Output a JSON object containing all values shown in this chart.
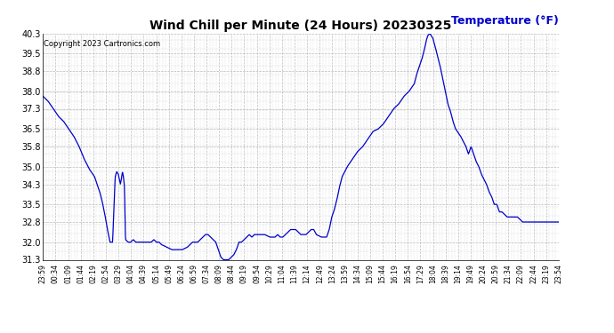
{
  "title": "Wind Chill per Minute (24 Hours) 20230325",
  "ylabel": "Temperature (°F)",
  "copyright_text": "Copyright 2023 Cartronics.com",
  "line_color": "#0000cc",
  "bg_color": "#ffffff",
  "grid_color": "#aaaaaa",
  "ylim": [
    31.3,
    40.3
  ],
  "yticks": [
    31.3,
    32.0,
    32.8,
    33.5,
    34.3,
    35.0,
    35.8,
    36.5,
    37.3,
    38.0,
    38.8,
    39.5,
    40.3
  ],
  "xtick_labels": [
    "23:59",
    "00:34",
    "01:09",
    "01:44",
    "02:19",
    "02:54",
    "03:29",
    "04:04",
    "04:39",
    "05:14",
    "05:49",
    "06:24",
    "06:59",
    "07:34",
    "08:09",
    "08:44",
    "09:19",
    "09:54",
    "10:29",
    "11:04",
    "11:39",
    "12:14",
    "12:49",
    "13:24",
    "13:59",
    "14:34",
    "15:09",
    "15:44",
    "16:19",
    "16:54",
    "17:29",
    "18:04",
    "18:39",
    "19:14",
    "19:49",
    "20:24",
    "20:59",
    "21:34",
    "22:09",
    "22:44",
    "23:19",
    "23:54"
  ],
  "data_points": [
    [
      0.0,
      37.8
    ],
    [
      0.01,
      37.6
    ],
    [
      0.02,
      37.3
    ],
    [
      0.03,
      37.0
    ],
    [
      0.04,
      36.8
    ],
    [
      0.05,
      36.5
    ],
    [
      0.06,
      36.2
    ],
    [
      0.07,
      35.8
    ],
    [
      0.08,
      35.3
    ],
    [
      0.09,
      34.9
    ],
    [
      0.1,
      34.6
    ],
    [
      0.105,
      34.3
    ],
    [
      0.11,
      34.0
    ],
    [
      0.115,
      33.6
    ],
    [
      0.12,
      33.1
    ],
    [
      0.125,
      32.5
    ],
    [
      0.13,
      32.0
    ],
    [
      0.135,
      32.0
    ],
    [
      0.14,
      34.6
    ],
    [
      0.143,
      34.8
    ],
    [
      0.146,
      34.7
    ],
    [
      0.148,
      34.5
    ],
    [
      0.15,
      34.3
    ],
    [
      0.152,
      34.5
    ],
    [
      0.154,
      34.8
    ],
    [
      0.156,
      34.6
    ],
    [
      0.158,
      34.2
    ],
    [
      0.16,
      32.1
    ],
    [
      0.165,
      32.0
    ],
    [
      0.17,
      32.0
    ],
    [
      0.175,
      32.1
    ],
    [
      0.18,
      32.0
    ],
    [
      0.185,
      32.0
    ],
    [
      0.19,
      32.0
    ],
    [
      0.195,
      32.0
    ],
    [
      0.2,
      32.0
    ],
    [
      0.21,
      32.0
    ],
    [
      0.215,
      32.1
    ],
    [
      0.22,
      32.0
    ],
    [
      0.225,
      32.0
    ],
    [
      0.23,
      31.9
    ],
    [
      0.24,
      31.8
    ],
    [
      0.25,
      31.7
    ],
    [
      0.26,
      31.7
    ],
    [
      0.27,
      31.7
    ],
    [
      0.28,
      31.8
    ],
    [
      0.29,
      32.0
    ],
    [
      0.295,
      32.0
    ],
    [
      0.3,
      32.0
    ],
    [
      0.305,
      32.1
    ],
    [
      0.31,
      32.2
    ],
    [
      0.315,
      32.3
    ],
    [
      0.32,
      32.3
    ],
    [
      0.325,
      32.2
    ],
    [
      0.33,
      32.1
    ],
    [
      0.335,
      32.0
    ],
    [
      0.34,
      31.7
    ],
    [
      0.345,
      31.4
    ],
    [
      0.35,
      31.3
    ],
    [
      0.355,
      31.3
    ],
    [
      0.36,
      31.3
    ],
    [
      0.365,
      31.4
    ],
    [
      0.37,
      31.5
    ],
    [
      0.375,
      31.7
    ],
    [
      0.38,
      32.0
    ],
    [
      0.385,
      32.0
    ],
    [
      0.39,
      32.1
    ],
    [
      0.395,
      32.2
    ],
    [
      0.4,
      32.3
    ],
    [
      0.405,
      32.2
    ],
    [
      0.41,
      32.3
    ],
    [
      0.42,
      32.3
    ],
    [
      0.43,
      32.3
    ],
    [
      0.44,
      32.2
    ],
    [
      0.45,
      32.2
    ],
    [
      0.455,
      32.3
    ],
    [
      0.46,
      32.2
    ],
    [
      0.465,
      32.2
    ],
    [
      0.47,
      32.3
    ],
    [
      0.475,
      32.4
    ],
    [
      0.48,
      32.5
    ],
    [
      0.485,
      32.5
    ],
    [
      0.49,
      32.5
    ],
    [
      0.495,
      32.4
    ],
    [
      0.5,
      32.3
    ],
    [
      0.505,
      32.3
    ],
    [
      0.51,
      32.3
    ],
    [
      0.515,
      32.4
    ],
    [
      0.52,
      32.5
    ],
    [
      0.525,
      32.5
    ],
    [
      0.53,
      32.3
    ],
    [
      0.54,
      32.2
    ],
    [
      0.55,
      32.2
    ],
    [
      0.555,
      32.5
    ],
    [
      0.56,
      33.0
    ],
    [
      0.565,
      33.3
    ],
    [
      0.57,
      33.7
    ],
    [
      0.575,
      34.2
    ],
    [
      0.58,
      34.6
    ],
    [
      0.59,
      35.0
    ],
    [
      0.6,
      35.3
    ],
    [
      0.61,
      35.6
    ],
    [
      0.62,
      35.8
    ],
    [
      0.63,
      36.1
    ],
    [
      0.64,
      36.4
    ],
    [
      0.65,
      36.5
    ],
    [
      0.66,
      36.7
    ],
    [
      0.67,
      37.0
    ],
    [
      0.68,
      37.3
    ],
    [
      0.69,
      37.5
    ],
    [
      0.7,
      37.8
    ],
    [
      0.71,
      38.0
    ],
    [
      0.72,
      38.3
    ],
    [
      0.725,
      38.7
    ],
    [
      0.73,
      39.0
    ],
    [
      0.735,
      39.3
    ],
    [
      0.74,
      39.7
    ],
    [
      0.743,
      40.0
    ],
    [
      0.746,
      40.2
    ],
    [
      0.75,
      40.3
    ],
    [
      0.753,
      40.2
    ],
    [
      0.756,
      40.1
    ],
    [
      0.76,
      39.8
    ],
    [
      0.765,
      39.4
    ],
    [
      0.77,
      39.0
    ],
    [
      0.775,
      38.5
    ],
    [
      0.78,
      38.0
    ],
    [
      0.785,
      37.5
    ],
    [
      0.79,
      37.2
    ],
    [
      0.795,
      36.8
    ],
    [
      0.8,
      36.5
    ],
    [
      0.81,
      36.2
    ],
    [
      0.82,
      35.8
    ],
    [
      0.825,
      35.5
    ],
    [
      0.83,
      35.8
    ],
    [
      0.835,
      35.5
    ],
    [
      0.84,
      35.2
    ],
    [
      0.845,
      35.0
    ],
    [
      0.85,
      34.7
    ],
    [
      0.855,
      34.5
    ],
    [
      0.86,
      34.3
    ],
    [
      0.865,
      34.0
    ],
    [
      0.87,
      33.8
    ],
    [
      0.875,
      33.5
    ],
    [
      0.88,
      33.5
    ],
    [
      0.885,
      33.2
    ],
    [
      0.89,
      33.2
    ],
    [
      0.9,
      33.0
    ],
    [
      0.91,
      33.0
    ],
    [
      0.92,
      33.0
    ],
    [
      0.93,
      32.8
    ],
    [
      0.94,
      32.8
    ],
    [
      0.95,
      32.8
    ],
    [
      0.96,
      32.8
    ],
    [
      0.97,
      32.8
    ],
    [
      0.98,
      32.8
    ],
    [
      0.99,
      32.8
    ],
    [
      1.0,
      32.8
    ]
  ]
}
